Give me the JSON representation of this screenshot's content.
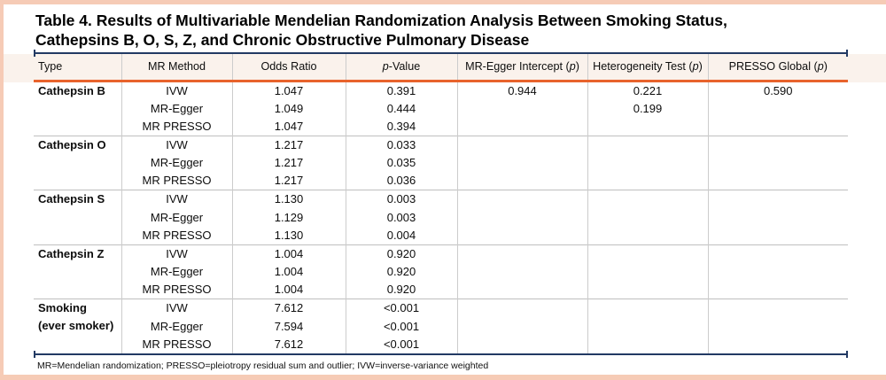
{
  "title": {
    "line1": "Table 4. Results of Multivariable Mendelian Randomization Analysis Between Smoking Status,",
    "line2": "Cathepsins B, O, S, Z, and Chronic Obstructive Pulmonary Disease"
  },
  "table": {
    "columns": [
      {
        "key": "type",
        "pre": "Type",
        "italic": "",
        "post": ""
      },
      {
        "key": "mr-method",
        "pre": "MR Method",
        "italic": "",
        "post": ""
      },
      {
        "key": "odds-ratio",
        "pre": "Odds Ratio",
        "italic": "",
        "post": ""
      },
      {
        "key": "p-value",
        "pre": "",
        "italic": "p",
        "post": "-Value"
      },
      {
        "key": "mr-egger-intercept",
        "pre": "MR-Egger Intercept (",
        "italic": "p",
        "post": ")"
      },
      {
        "key": "heterogeneity-test",
        "pre": "Heterogeneity Test (",
        "italic": "p",
        "post": ")"
      },
      {
        "key": "presso-global",
        "pre": "PRESSO Global (",
        "italic": "p",
        "post": ")"
      }
    ],
    "groups": [
      {
        "type_lines": [
          "Cathepsin B"
        ],
        "rows": [
          {
            "method": "IVW",
            "odds_ratio": "1.047",
            "p_value": "0.391",
            "mr_egger_intercept_p": "0.944",
            "heterogeneity_p": "0.221",
            "presso_global_p": "0.590"
          },
          {
            "method": "MR-Egger",
            "odds_ratio": "1.049",
            "p_value": "0.444",
            "mr_egger_intercept_p": "",
            "heterogeneity_p": "0.199",
            "presso_global_p": ""
          },
          {
            "method": "MR PRESSO",
            "odds_ratio": "1.047",
            "p_value": "0.394",
            "mr_egger_intercept_p": "",
            "heterogeneity_p": "",
            "presso_global_p": ""
          }
        ]
      },
      {
        "type_lines": [
          "Cathepsin O"
        ],
        "rows": [
          {
            "method": "IVW",
            "odds_ratio": "1.217",
            "p_value": "0.033",
            "mr_egger_intercept_p": "",
            "heterogeneity_p": "",
            "presso_global_p": ""
          },
          {
            "method": "MR-Egger",
            "odds_ratio": "1.217",
            "p_value": "0.035",
            "mr_egger_intercept_p": "",
            "heterogeneity_p": "",
            "presso_global_p": ""
          },
          {
            "method": "MR PRESSO",
            "odds_ratio": "1.217",
            "p_value": "0.036",
            "mr_egger_intercept_p": "",
            "heterogeneity_p": "",
            "presso_global_p": ""
          }
        ]
      },
      {
        "type_lines": [
          "Cathepsin S"
        ],
        "rows": [
          {
            "method": "IVW",
            "odds_ratio": "1.130",
            "p_value": "0.003",
            "mr_egger_intercept_p": "",
            "heterogeneity_p": "",
            "presso_global_p": ""
          },
          {
            "method": "MR-Egger",
            "odds_ratio": "1.129",
            "p_value": "0.003",
            "mr_egger_intercept_p": "",
            "heterogeneity_p": "",
            "presso_global_p": ""
          },
          {
            "method": "MR PRESSO",
            "odds_ratio": "1.130",
            "p_value": "0.004",
            "mr_egger_intercept_p": "",
            "heterogeneity_p": "",
            "presso_global_p": ""
          }
        ]
      },
      {
        "type_lines": [
          "Cathepsin Z"
        ],
        "rows": [
          {
            "method": "IVW",
            "odds_ratio": "1.004",
            "p_value": "0.920",
            "mr_egger_intercept_p": "",
            "heterogeneity_p": "",
            "presso_global_p": ""
          },
          {
            "method": "MR-Egger",
            "odds_ratio": "1.004",
            "p_value": "0.920",
            "mr_egger_intercept_p": "",
            "heterogeneity_p": "",
            "presso_global_p": ""
          },
          {
            "method": "MR PRESSO",
            "odds_ratio": "1.004",
            "p_value": "0.920",
            "mr_egger_intercept_p": "",
            "heterogeneity_p": "",
            "presso_global_p": ""
          }
        ]
      },
      {
        "type_lines": [
          "Smoking",
          "(ever smoker)"
        ],
        "rows": [
          {
            "method": "IVW",
            "odds_ratio": "7.612",
            "p_value": "<0.001",
            "mr_egger_intercept_p": "",
            "heterogeneity_p": "",
            "presso_global_p": ""
          },
          {
            "method": "MR-Egger",
            "odds_ratio": "7.594",
            "p_value": "<0.001",
            "mr_egger_intercept_p": "",
            "heterogeneity_p": "",
            "presso_global_p": ""
          },
          {
            "method": "MR PRESSO",
            "odds_ratio": "7.612",
            "p_value": "<0.001",
            "mr_egger_intercept_p": "",
            "heterogeneity_p": "",
            "presso_global_p": ""
          }
        ]
      }
    ]
  },
  "footnote": "MR=Mendelian randomization; PRESSO=pleiotropy residual sum and outlier; IVW=inverse-variance weighted",
  "colors": {
    "frame": "#F6CBB6",
    "rule_navy": "#223A63",
    "header_underline_orange": "#E8632C",
    "header_band": "#FAF2EC",
    "gridline": "#CCCCCC",
    "group_separator": "#BFBFBF"
  }
}
